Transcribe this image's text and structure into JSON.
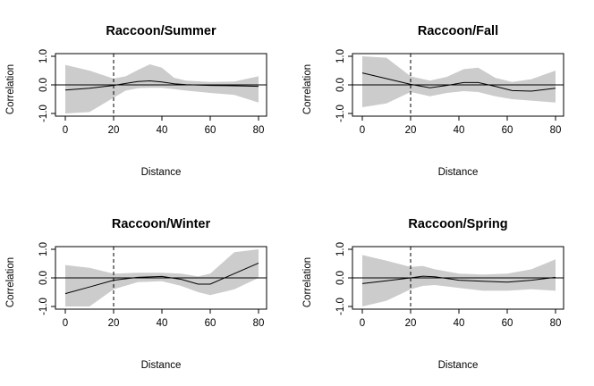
{
  "chart_data": [
    {
      "type": "line",
      "title": "Raccoon/Summer",
      "xlabel": "Distance",
      "ylabel": "Correlation",
      "xticks": [
        "0",
        "20",
        "40",
        "60",
        "80"
      ],
      "yticks": [
        "-1.0",
        "0.0",
        "1.0"
      ],
      "xlim": [
        0,
        80
      ],
      "ylim": [
        -1,
        1
      ],
      "vline_x": 20,
      "hline_y": 0,
      "x": [
        0,
        10,
        20,
        25,
        30,
        35,
        40,
        45,
        50,
        60,
        70,
        80
      ],
      "estimate": [
        -0.18,
        -0.12,
        -0.02,
        0.05,
        0.12,
        0.14,
        0.1,
        0.04,
        0.01,
        -0.02,
        -0.03,
        -0.05
      ],
      "ci_upper": [
        0.7,
        0.5,
        0.22,
        0.3,
        0.52,
        0.72,
        0.6,
        0.25,
        0.15,
        0.1,
        0.12,
        0.3
      ],
      "ci_lower": [
        -1.0,
        -0.95,
        -0.45,
        -0.2,
        -0.12,
        -0.1,
        -0.1,
        -0.15,
        -0.2,
        -0.28,
        -0.35,
        -0.62
      ]
    },
    {
      "type": "line",
      "title": "Raccoon/Fall",
      "xlabel": "Distance",
      "ylabel": "Correlation",
      "xticks": [
        "0",
        "20",
        "40",
        "60",
        "80"
      ],
      "yticks": [
        "-1.0",
        "0.0",
        "1.0"
      ],
      "xlim": [
        0,
        80
      ],
      "ylim": [
        -1,
        1
      ],
      "vline_x": 20,
      "hline_y": 0,
      "x": [
        0,
        10,
        20,
        28,
        35,
        42,
        48,
        55,
        62,
        70,
        80
      ],
      "estimate": [
        0.42,
        0.22,
        0.02,
        -0.1,
        -0.02,
        0.08,
        0.08,
        -0.05,
        -0.2,
        -0.22,
        -0.12
      ],
      "ci_upper": [
        1.0,
        0.95,
        0.3,
        0.15,
        0.28,
        0.55,
        0.6,
        0.25,
        0.1,
        0.2,
        0.5
      ],
      "ci_lower": [
        -0.78,
        -0.65,
        -0.25,
        -0.4,
        -0.28,
        -0.22,
        -0.25,
        -0.4,
        -0.5,
        -0.55,
        -0.62
      ]
    },
    {
      "type": "line",
      "title": "Raccoon/Winter",
      "xlabel": "Distance",
      "ylabel": "Correlation",
      "xticks": [
        "0",
        "20",
        "40",
        "60",
        "80"
      ],
      "yticks": [
        "-1.0",
        "0.0",
        "1.0"
      ],
      "xlim": [
        0,
        80
      ],
      "ylim": [
        -1,
        1
      ],
      "vline_x": 20,
      "hline_y": 0,
      "x": [
        0,
        10,
        20,
        30,
        40,
        48,
        55,
        60,
        70,
        80
      ],
      "estimate": [
        -0.55,
        -0.32,
        -0.08,
        0.02,
        0.05,
        -0.05,
        -0.22,
        -0.22,
        0.15,
        0.52
      ],
      "ci_upper": [
        0.45,
        0.35,
        0.15,
        0.18,
        0.18,
        0.15,
        0.05,
        0.15,
        0.9,
        1.0
      ],
      "ci_lower": [
        -1.0,
        -1.0,
        -0.4,
        -0.15,
        -0.12,
        -0.28,
        -0.5,
        -0.6,
        -0.4,
        0.0
      ]
    },
    {
      "type": "line",
      "title": "Raccoon/Spring",
      "xlabel": "Distance",
      "ylabel": "Correlation",
      "xticks": [
        "0",
        "20",
        "40",
        "60",
        "80"
      ],
      "yticks": [
        "-1.0",
        "0.0",
        "1.0"
      ],
      "xlim": [
        0,
        80
      ],
      "ylim": [
        -1,
        1
      ],
      "vline_x": 20,
      "hline_y": 0,
      "x": [
        0,
        10,
        20,
        25,
        30,
        40,
        50,
        60,
        70,
        80
      ],
      "estimate": [
        -0.2,
        -0.1,
        0.0,
        0.06,
        0.04,
        -0.08,
        -0.12,
        -0.15,
        -0.08,
        0.02
      ],
      "ci_upper": [
        0.8,
        0.6,
        0.38,
        0.42,
        0.3,
        0.15,
        0.12,
        0.15,
        0.3,
        0.65
      ],
      "ci_lower": [
        -1.0,
        -0.8,
        -0.4,
        -0.28,
        -0.25,
        -0.35,
        -0.45,
        -0.45,
        -0.4,
        -0.45
      ]
    }
  ],
  "colors": {
    "ci_band": "#cccccc",
    "line": "#000000",
    "axis": "#000000"
  }
}
